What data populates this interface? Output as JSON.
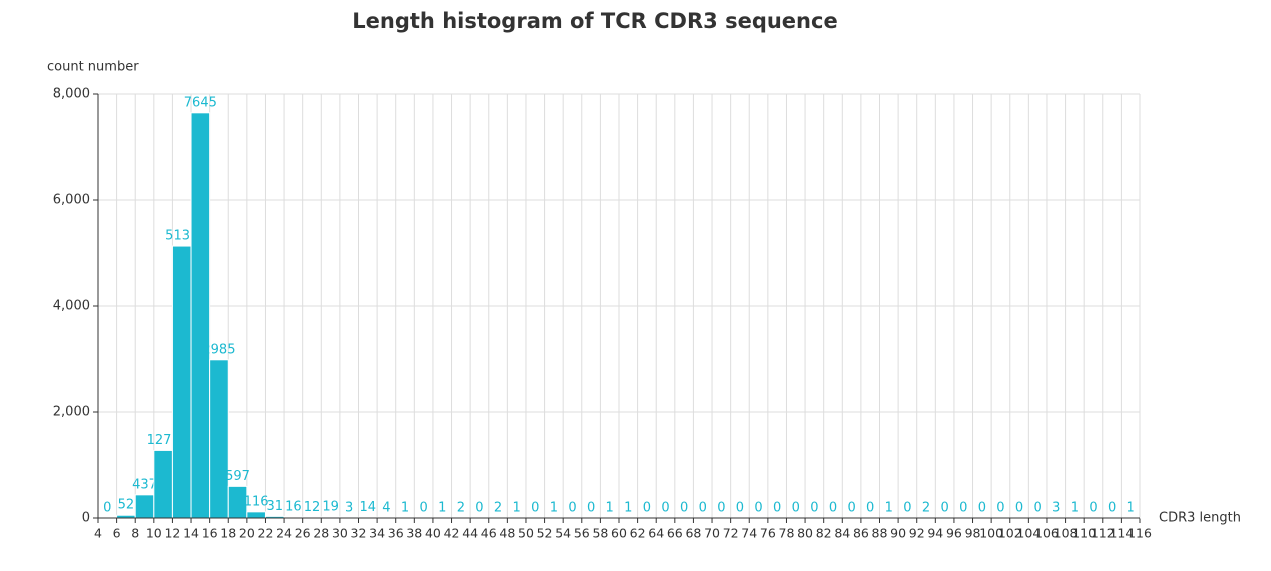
{
  "chart_data": {
    "type": "histogram",
    "title": "Length histogram of TCR CDR3 sequence",
    "y_label": "count number",
    "x_label": "CDR3 length",
    "bins": [
      4,
      6,
      8,
      10,
      12,
      14,
      16,
      18,
      20,
      22,
      24,
      26,
      28,
      30,
      32,
      34,
      36,
      38,
      40,
      42,
      44,
      46,
      48,
      50,
      52,
      54,
      56,
      58,
      60,
      62,
      64,
      66,
      68,
      70,
      72,
      74,
      76,
      78,
      80,
      82,
      84,
      86,
      88,
      90,
      92,
      94,
      96,
      98,
      100,
      102,
      104,
      106,
      108,
      110,
      112,
      114,
      116
    ],
    "values": [
      0,
      52,
      437,
      1275,
      5131,
      7645,
      2985,
      597,
      116,
      31,
      16,
      12,
      19,
      3,
      14,
      4,
      1,
      0,
      1,
      2,
      0,
      2,
      1,
      0,
      1,
      0,
      0,
      1,
      1,
      0,
      0,
      0,
      0,
      0,
      0,
      0,
      0,
      0,
      0,
      0,
      0,
      0,
      1,
      0,
      2,
      0,
      0,
      0,
      0,
      0,
      0,
      3,
      1,
      0,
      0,
      1
    ],
    "color": "#1cb9d0",
    "xlim": [
      4,
      116
    ],
    "xticks": [
      4,
      6,
      8,
      10,
      12,
      14,
      16,
      18,
      20,
      22,
      24,
      26,
      28,
      30,
      32,
      34,
      36,
      38,
      40,
      42,
      44,
      46,
      48,
      50,
      52,
      54,
      56,
      58,
      60,
      62,
      64,
      66,
      68,
      70,
      72,
      74,
      76,
      78,
      80,
      82,
      84,
      86,
      88,
      90,
      92,
      94,
      96,
      98,
      100,
      102,
      104,
      106,
      108,
      110,
      112,
      114,
      116
    ],
    "ylim": [
      0,
      8000
    ],
    "yticks": [
      0,
      {
        "value": 2000,
        "label": "2,000"
      },
      {
        "value": 4000,
        "label": "4,000"
      },
      {
        "value": 6000,
        "label": "6,000"
      },
      {
        "value": 8000,
        "label": "8,000"
      }
    ],
    "grid": true
  }
}
